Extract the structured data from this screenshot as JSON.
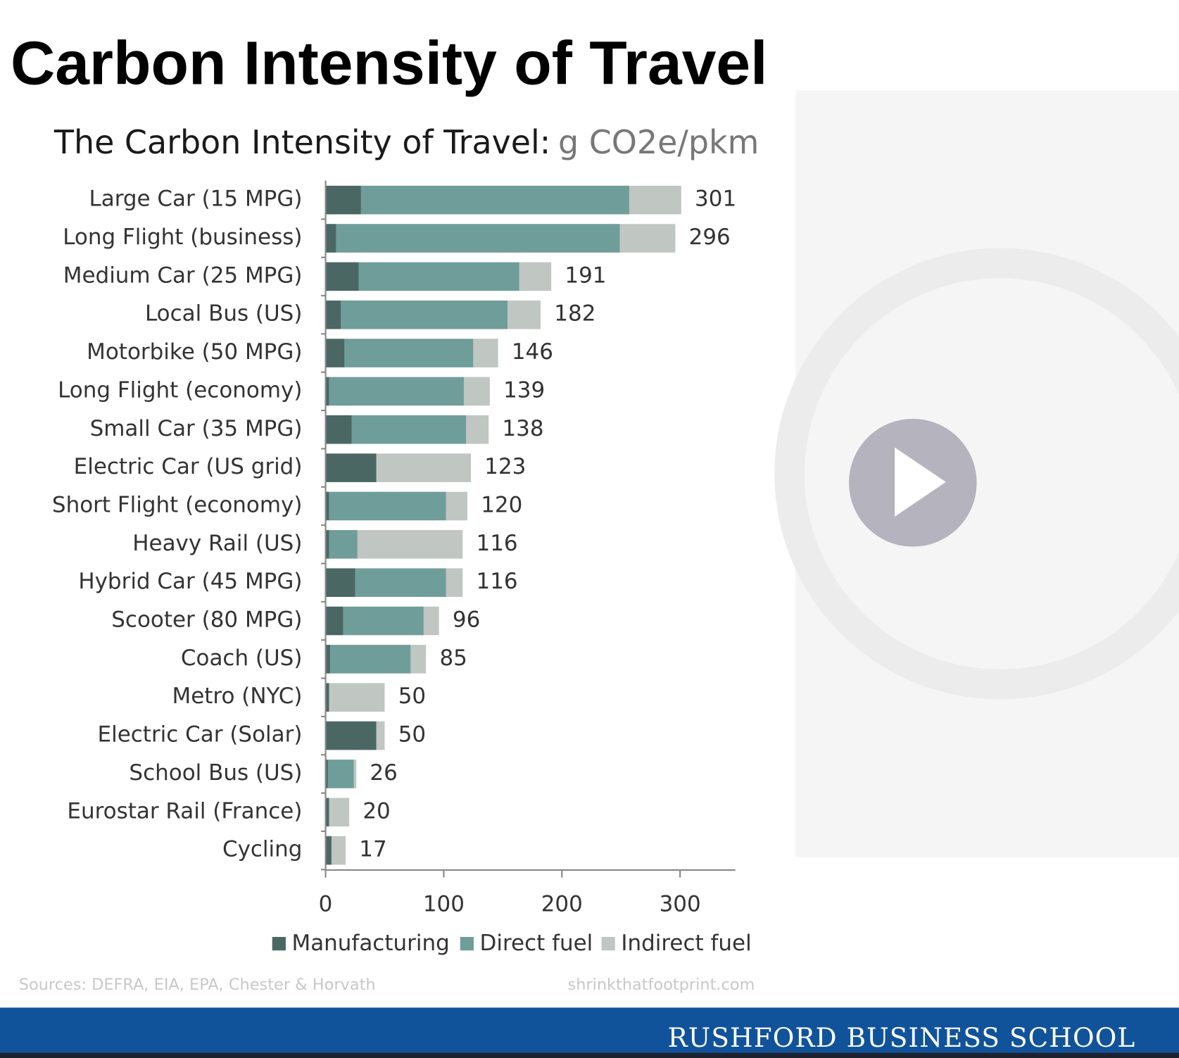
{
  "slide": {
    "title": "Carbon Intensity of Travel",
    "footer": "RUSHFORD BUSINESS SCHOOL"
  },
  "chart_data": {
    "type": "stacked_bar_horizontal",
    "title": "The Carbon Intensity of Travel:",
    "unit": "g CO2e/pkm",
    "categories": [
      "Large Car (15 MPG)",
      "Long Flight (business)",
      "Medium Car (25 MPG)",
      "Local Bus (US)",
      "Motorbike (50 MPG)",
      "Long Flight (economy)",
      "Small Car (35 MPG)",
      "Electric Car (US grid)",
      "Short Flight (economy)",
      "Heavy Rail (US)",
      "Hybrid Car (45 MPG)",
      "Scooter (80 MPG)",
      "Coach (US)",
      "Metro (NYC)",
      "Electric Car (Solar)",
      "School Bus (US)",
      "Eurostar Rail (France)",
      "Cycling"
    ],
    "series": [
      {
        "name": "Manufacturing",
        "color": "#4a6764",
        "values": [
          30,
          9,
          28,
          13,
          16,
          3,
          22,
          43,
          3,
          3,
          25,
          15,
          4,
          3,
          43,
          2,
          3,
          5
        ]
      },
      {
        "name": "Direct fuel",
        "color": "#6f9d9a",
        "values": [
          227,
          240,
          136,
          141,
          109,
          114,
          97,
          0,
          99,
          24,
          77,
          68,
          68,
          0,
          0,
          22,
          0,
          0
        ]
      },
      {
        "name": "Indirect fuel",
        "color": "#c0c6c2",
        "values": [
          44,
          47,
          27,
          28,
          21,
          22,
          19,
          80,
          18,
          89,
          14,
          13,
          13,
          47,
          7,
          2,
          17,
          12
        ]
      }
    ],
    "totals": [
      301,
      296,
      191,
      182,
      146,
      139,
      138,
      123,
      120,
      116,
      116,
      96,
      85,
      50,
      50,
      26,
      20,
      17
    ],
    "xlim": [
      0,
      350
    ],
    "xticks": [
      0,
      100,
      200,
      300
    ],
    "source": "Sources:  DEFRA, EIA, EPA, Chester & Horvath",
    "credit": "shrinkthatfootprint.com"
  }
}
